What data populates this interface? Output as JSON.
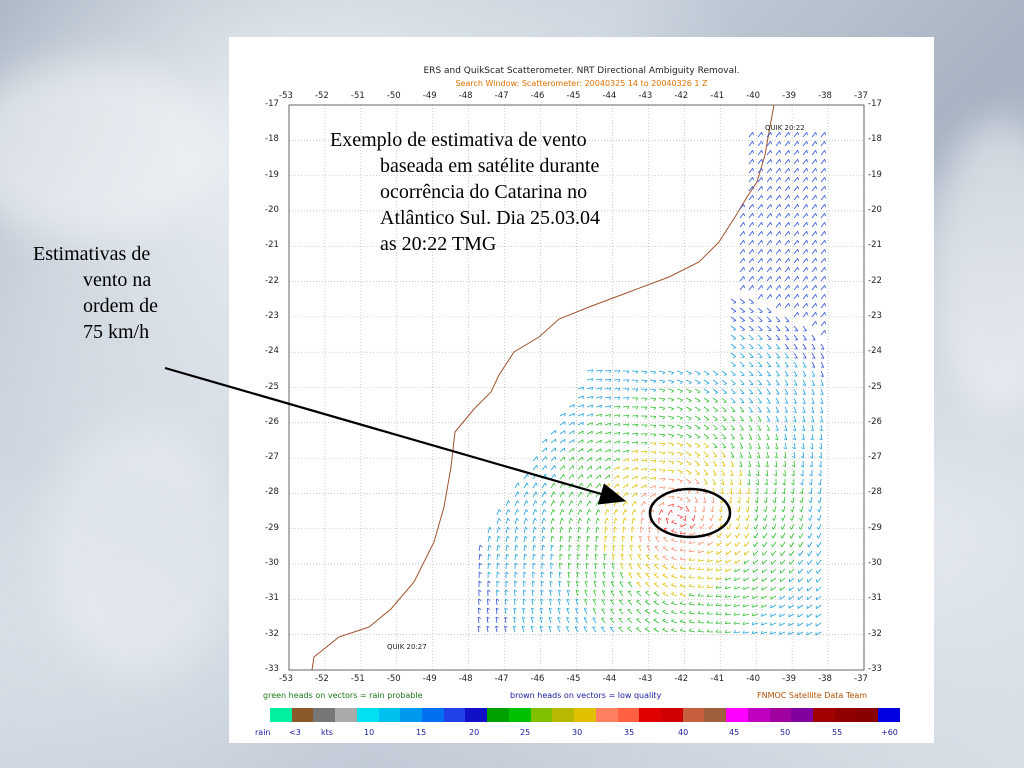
{
  "chart": {
    "title": "ERS and QuikScat Scatterometer. NRT Directional Ambiguity Removal.",
    "subtitle": "Search Window: Scatterometer: 20040325 14 to 20040326 1 Z",
    "x_ticks": [
      "-53",
      "-52",
      "-51",
      "-50",
      "-49",
      "-48",
      "-47",
      "-46",
      "-45",
      "-44",
      "-43",
      "-42",
      "-41",
      "-40",
      "-39",
      "-38",
      "-37"
    ],
    "y_ticks": [
      "-17",
      "-18",
      "-19",
      "-20",
      "-21",
      "-22",
      "-23",
      "-24",
      "-25",
      "-26",
      "-27",
      "-28",
      "-29",
      "-30",
      "-31",
      "-32",
      "-33"
    ],
    "pass_labels": {
      "upper": "QUIK 20:22",
      "lower": "QUIK 20:27"
    },
    "notes": {
      "left": "green heads on vectors = rain probable",
      "middle": "brown heads on vectors = low quality",
      "right": "FNMOC Satellite Data Team"
    },
    "scale_labels": [
      "rain",
      "<3",
      "kts",
      "10",
      "15",
      "20",
      "25",
      "30",
      "35",
      "40",
      "45",
      "50",
      "55",
      "+60"
    ],
    "scale_colors": [
      "#00f0a0",
      "#8b5a2b",
      "#777777",
      "#aaaaaa",
      "#00e0f0",
      "#00c0f0",
      "#0099f0",
      "#0070f0",
      "#2040e8",
      "#1010c8",
      "#00a000",
      "#00c000",
      "#80c000",
      "#b8b800",
      "#e0c000",
      "#ff8060",
      "#ff6040",
      "#e00000",
      "#d00000",
      "#c86040",
      "#a06040",
      "#ff00ff",
      "#c000c0",
      "#a000a0",
      "#8000a0",
      "#a00000",
      "#900000",
      "#880000",
      "#0000e0"
    ],
    "colors": {
      "coast": "#a0522d",
      "grid": "#aaaaaa",
      "tick_text": "#222222",
      "subtitle": "#e07000"
    }
  },
  "annotations": {
    "main_caption": [
      "Exemplo de estimativa de vento",
      "baseada em satélite durante",
      "ocorrência do Catarina no",
      "Atlântico Sul. Dia 25.03.04",
      "as 20:22 TMG"
    ],
    "side_caption": [
      "Estimativas de",
      "vento na",
      "ordem de",
      "75 km/h"
    ]
  }
}
